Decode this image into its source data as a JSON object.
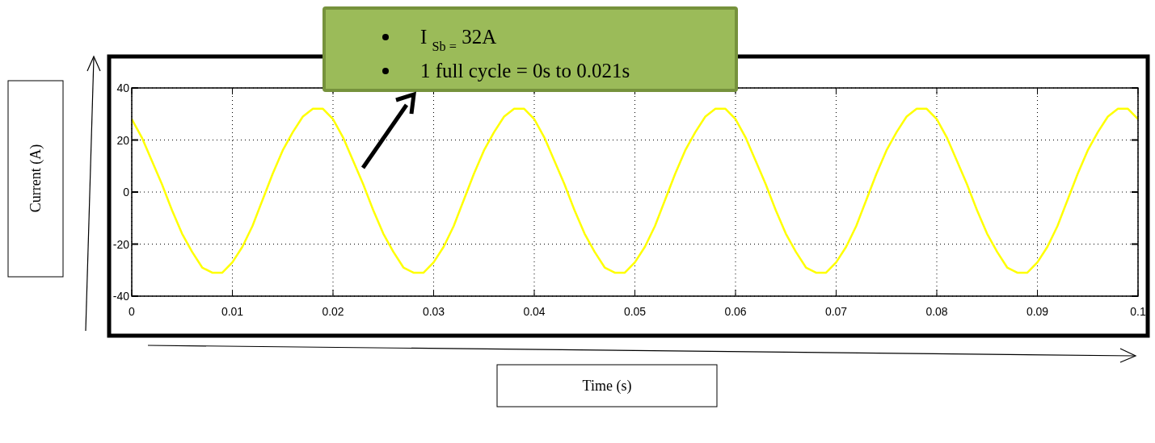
{
  "chart_data": {
    "type": "line",
    "xlabel": "Time (s)",
    "ylabel": "Current (A)",
    "annotations": [
      "I $_{Sb =}$ 32A",
      "1 full cycle = 0s to 0.021s"
    ],
    "x": [
      0,
      0.001,
      0.002,
      0.003,
      0.004,
      0.005,
      0.006,
      0.007,
      0.008,
      0.009,
      0.01,
      0.011,
      0.012,
      0.013,
      0.014,
      0.015,
      0.016,
      0.017,
      0.018,
      0.019,
      0.02,
      0.021,
      0.022,
      0.023,
      0.024,
      0.025,
      0.026,
      0.027,
      0.028,
      0.029,
      0.03,
      0.031,
      0.032,
      0.033,
      0.034,
      0.035,
      0.036,
      0.037,
      0.038,
      0.039,
      0.04,
      0.041,
      0.042,
      0.043,
      0.044,
      0.045,
      0.046,
      0.047,
      0.048,
      0.049,
      0.05,
      0.051,
      0.052,
      0.053,
      0.054,
      0.055,
      0.056,
      0.057,
      0.058,
      0.059,
      0.06,
      0.061,
      0.062,
      0.063,
      0.064,
      0.065,
      0.066,
      0.067,
      0.068,
      0.069,
      0.07,
      0.071,
      0.072,
      0.073,
      0.074,
      0.075,
      0.076,
      0.077,
      0.078,
      0.079,
      0.08,
      0.081,
      0.082,
      0.083,
      0.084,
      0.085,
      0.086,
      0.087,
      0.088,
      0.089,
      0.09,
      0.091,
      0.092,
      0.093,
      0.094,
      0.095,
      0.096,
      0.097,
      0.098,
      0.099,
      0.1
    ],
    "series": [
      {
        "color": "#ffff00",
        "values": [
          28,
          21,
          12,
          3,
          -7,
          -16,
          -23,
          -29,
          -31,
          -31,
          -27,
          -21,
          -13,
          -3,
          7,
          16,
          23,
          29,
          32,
          32,
          28,
          21,
          12,
          3,
          -7,
          -16,
          -23,
          -29,
          -31,
          -31,
          -27,
          -21,
          -13,
          -3,
          7,
          16,
          23,
          29,
          32,
          32,
          28,
          21,
          12,
          3,
          -7,
          -16,
          -23,
          -29,
          -31,
          -31,
          -27,
          -21,
          -13,
          -3,
          7,
          16,
          23,
          29,
          32,
          32,
          28,
          21,
          12,
          3,
          -7,
          -16,
          -23,
          -29,
          -31,
          -31,
          -27,
          -21,
          -13,
          -3,
          7,
          16,
          23,
          29,
          32,
          32,
          28,
          21,
          12,
          3,
          -7,
          -16,
          -23,
          -29,
          -31,
          -31,
          -27,
          -21,
          -13,
          -3,
          7,
          16,
          23,
          29,
          32,
          32,
          28
        ]
      }
    ],
    "xlim": [
      0,
      0.1
    ],
    "xticks": [
      0,
      0.01,
      0.02,
      0.03,
      0.04,
      0.05,
      0.06,
      0.07,
      0.08,
      0.09,
      0.1
    ],
    "ylim": [
      -40,
      40
    ],
    "yticks": [
      -40,
      -20,
      0,
      20,
      40
    ],
    "grid": true,
    "line_style": "solid"
  }
}
